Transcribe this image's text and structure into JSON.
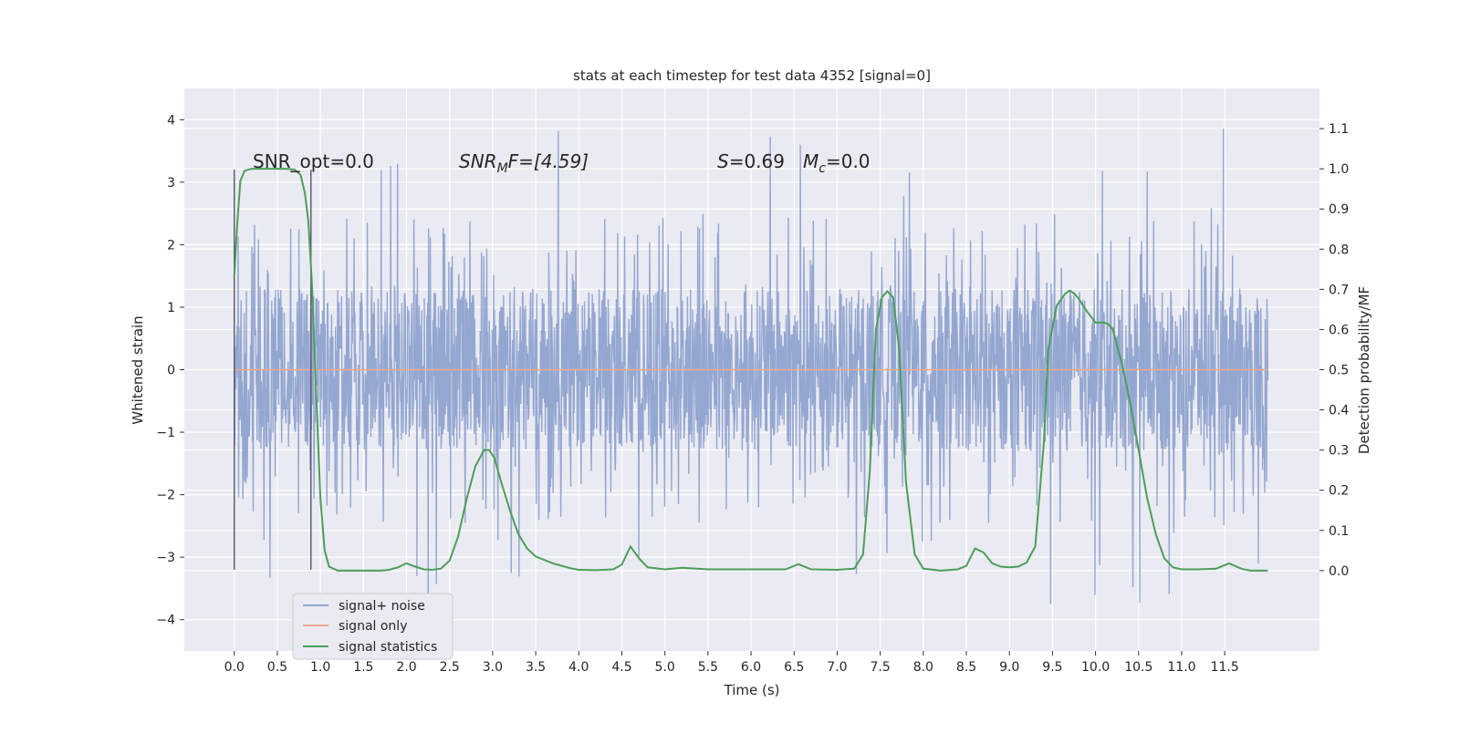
{
  "chart_data": {
    "type": "line",
    "title": "stats at each timestep for test data 4352 [signal=0]",
    "xlabel": "Time (s)",
    "ylabel_left": "Whitened strain",
    "ylabel_right": "Detection probability/MF",
    "xlim": [
      -0.58,
      12.6
    ],
    "ylim_left": [
      -4.5,
      4.5
    ],
    "ylim_right": [
      -0.2,
      1.2
    ],
    "x_ticks": [
      "0.0",
      "0.5",
      "1.0",
      "1.5",
      "2.0",
      "2.5",
      "3.0",
      "3.5",
      "4.0",
      "4.5",
      "5.0",
      "5.5",
      "6.0",
      "6.5",
      "7.0",
      "7.5",
      "8.0",
      "8.5",
      "9.0",
      "9.5",
      "10.0",
      "10.5",
      "11.0",
      "11.5"
    ],
    "y_ticks_left": [
      "−4",
      "−3",
      "−2",
      "−1",
      "0",
      "1",
      "2",
      "3",
      "4"
    ],
    "y_ticks_right": [
      "0.0",
      "0.1",
      "0.2",
      "0.3",
      "0.4",
      "0.5",
      "0.6",
      "0.7",
      "0.8",
      "0.9",
      "1.0",
      "1.1"
    ],
    "grid": true,
    "legend_position": "lower-left",
    "annotations": {
      "snr_opt": "SNR_opt=0.0",
      "snr_mf_main": "SNR",
      "snr_mf_sub": "M",
      "snr_mf_rest": "F=[4.59]",
      "s_main": "S",
      "s_rest": "=0.69",
      "mc_main": "M",
      "mc_sub": "c",
      "mc_rest": "=0.0"
    },
    "vertical_markers_x": [
      0.0,
      0.89
    ],
    "series": [
      {
        "name": "signal+ noise",
        "color": "#8fa3cf",
        "style": "dense noise filling approx -1.3 to 1.3 with spikes up to about ±4 over 0.0–12.0 s",
        "x_range": [
          0.0,
          12.0
        ]
      },
      {
        "name": "signal only",
        "color": "#e8a98e",
        "x": [
          0.0,
          12.0
        ],
        "y": [
          0.0,
          0.0
        ]
      },
      {
        "name": "signal statistics",
        "color": "#4c9e5a",
        "axis": "right",
        "x": [
          0.0,
          0.03,
          0.07,
          0.12,
          0.2,
          0.3,
          0.4,
          0.5,
          0.6,
          0.7,
          0.77,
          0.82,
          0.86,
          0.9,
          0.95,
          1.0,
          1.05,
          1.1,
          1.2,
          1.3,
          1.5,
          1.7,
          1.8,
          1.9,
          2.0,
          2.1,
          2.2,
          2.3,
          2.4,
          2.5,
          2.6,
          2.7,
          2.8,
          2.9,
          2.96,
          3.02,
          3.1,
          3.2,
          3.3,
          3.4,
          3.5,
          3.7,
          3.9,
          4.0,
          4.2,
          4.4,
          4.5,
          4.6,
          4.7,
          4.8,
          5.0,
          5.2,
          5.5,
          6.0,
          6.4,
          6.55,
          6.7,
          7.0,
          7.2,
          7.3,
          7.38,
          7.45,
          7.52,
          7.58,
          7.65,
          7.72,
          7.8,
          7.9,
          8.0,
          8.2,
          8.4,
          8.5,
          8.6,
          8.7,
          8.8,
          8.9,
          9.0,
          9.1,
          9.2,
          9.3,
          9.4,
          9.45,
          9.55,
          9.65,
          9.7,
          9.75,
          9.8,
          9.9,
          10.0,
          10.1,
          10.15,
          10.2,
          10.3,
          10.4,
          10.5,
          10.6,
          10.7,
          10.8,
          10.9,
          11.0,
          11.2,
          11.4,
          11.55,
          11.7,
          11.8,
          12.0
        ],
        "y": [
          0.73,
          0.85,
          0.97,
          0.995,
          1.0,
          1.0,
          1.0,
          1.0,
          1.0,
          0.998,
          0.985,
          0.94,
          0.87,
          0.72,
          0.45,
          0.18,
          0.05,
          0.01,
          0.0,
          0.0,
          0.0,
          0.0,
          0.002,
          0.008,
          0.018,
          0.01,
          0.003,
          0.002,
          0.005,
          0.025,
          0.085,
          0.18,
          0.26,
          0.3,
          0.3,
          0.28,
          0.22,
          0.15,
          0.09,
          0.055,
          0.035,
          0.018,
          0.006,
          0.002,
          0.001,
          0.003,
          0.015,
          0.06,
          0.03,
          0.008,
          0.003,
          0.007,
          0.003,
          0.003,
          0.003,
          0.016,
          0.003,
          0.002,
          0.005,
          0.04,
          0.25,
          0.6,
          0.68,
          0.695,
          0.68,
          0.55,
          0.22,
          0.04,
          0.005,
          0.0,
          0.003,
          0.012,
          0.055,
          0.045,
          0.018,
          0.01,
          0.008,
          0.01,
          0.02,
          0.06,
          0.32,
          0.55,
          0.66,
          0.69,
          0.697,
          0.69,
          0.678,
          0.645,
          0.617,
          0.617,
          0.613,
          0.6,
          0.52,
          0.42,
          0.3,
          0.18,
          0.09,
          0.03,
          0.008,
          0.003,
          0.003,
          0.005,
          0.018,
          0.004,
          0.0,
          0.0
        ]
      }
    ]
  }
}
